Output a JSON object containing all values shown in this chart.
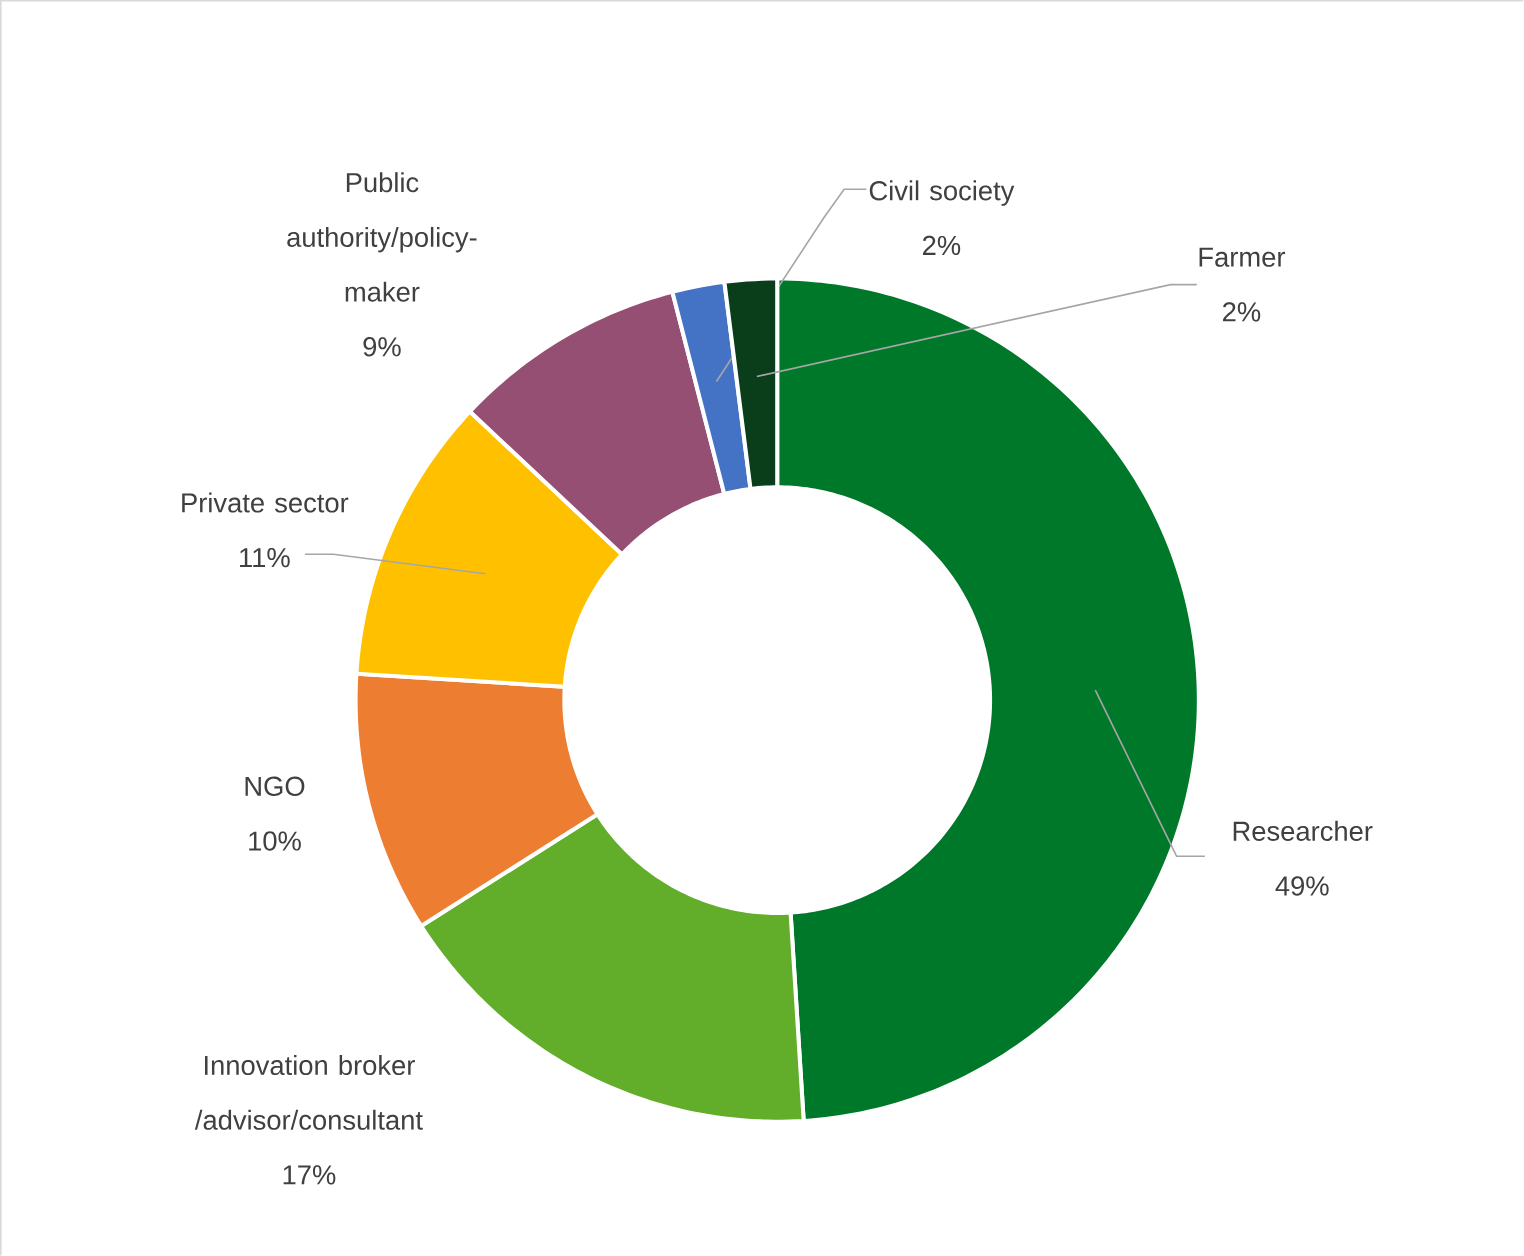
{
  "chart_data": {
    "type": "donut",
    "categories": [
      "Researcher",
      "Innovation broker /advisor/consultant",
      "NGO",
      "Private sector",
      "Public authority/policy-maker",
      "Civil society",
      "Farmer"
    ],
    "values": [
      49,
      17,
      10,
      11,
      9,
      2,
      2
    ],
    "colors": [
      "#00782a",
      "#62ad2a",
      "#ed7d31",
      "#ffc000",
      "#954f72",
      "#4472c4",
      "#0a3d1a"
    ],
    "value_labels": [
      "49%",
      "17%",
      "10%",
      "11%",
      "9%",
      "2%",
      "2%"
    ]
  }
}
